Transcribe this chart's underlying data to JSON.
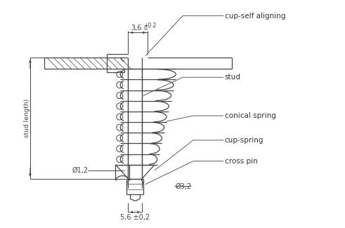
{
  "bg_color": "#ffffff",
  "line_color": "#444444",
  "labels": {
    "cup_self_aligning": "cup-self aligning",
    "stud": "stud",
    "conical_spring": "conical spring",
    "cup_spring": "cup-spring",
    "cross_pin": "cross pin",
    "stud_length": "stud length)",
    "dim_36": "3,6",
    "dim_12": "Ø1,2",
    "dim_32": "Ø3,2",
    "dim_56": "5,6 ±0,2"
  },
  "figsize": [
    4.91,
    3.25
  ],
  "dpi": 100
}
